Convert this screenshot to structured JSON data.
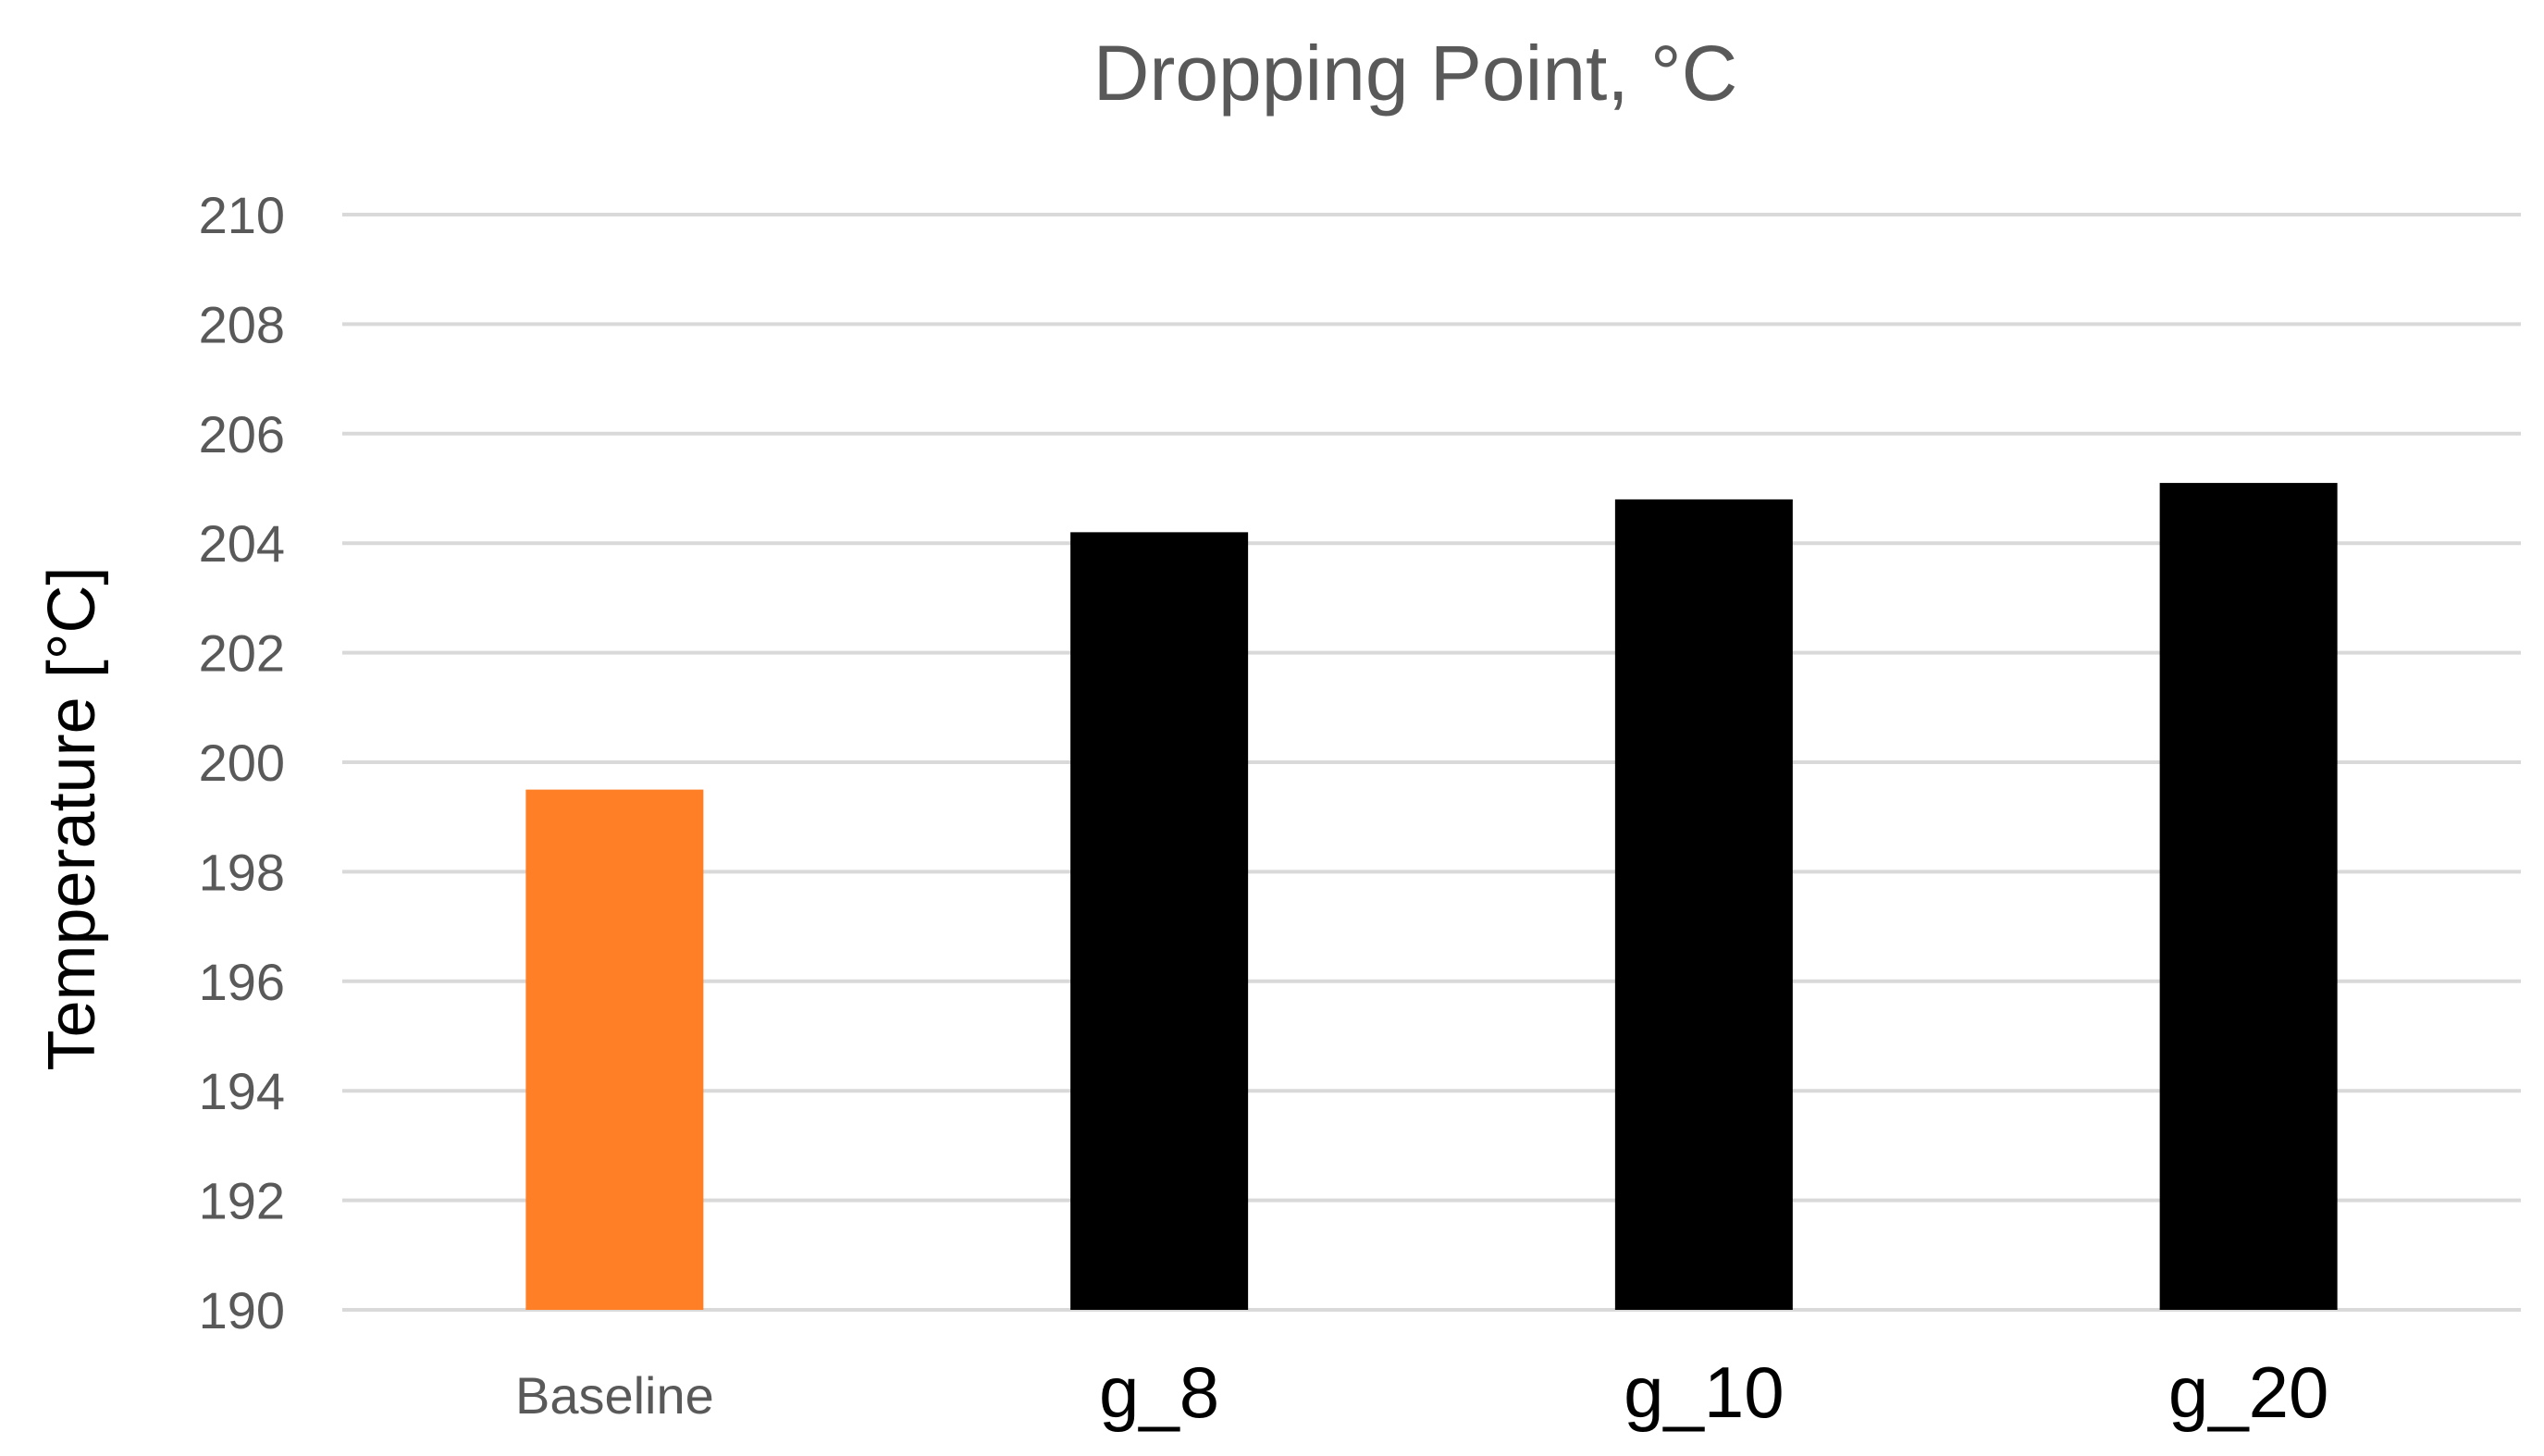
{
  "chart_data": {
    "type": "bar",
    "title": "Dropping Point, °C",
    "ylabel": "Temperature [°C]",
    "xlabel": "",
    "categories": [
      "Baseline",
      "g_8",
      "g_10",
      "g_20"
    ],
    "values": [
      199.5,
      204.2,
      204.8,
      205.1
    ],
    "bar_colors": [
      "#ff7f27",
      "#000000",
      "#000000",
      "#000000"
    ],
    "ylim": [
      190,
      210
    ],
    "yticks": [
      "190",
      "192",
      "194",
      "196",
      "198",
      "200",
      "202",
      "204",
      "206",
      "208",
      "210"
    ],
    "grid": true,
    "legend": "none"
  }
}
